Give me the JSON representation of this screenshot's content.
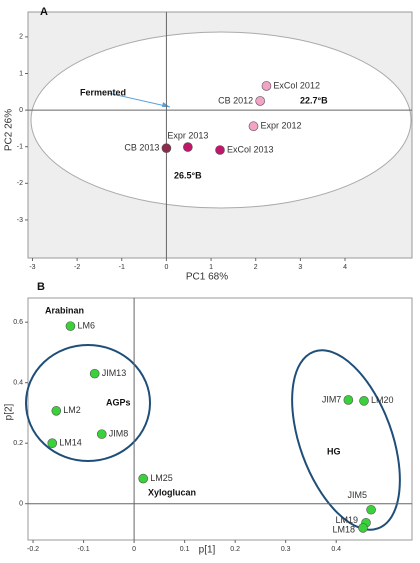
{
  "chart_data": [
    {
      "type": "scatter",
      "title": "A",
      "xlabel": "PC1 68%",
      "ylabel": "PC2 26%",
      "xlim": [
        -3.1,
        5.5
      ],
      "ylim": [
        -4.04,
        2.68
      ],
      "xticks": [
        -3,
        -2,
        -1,
        0,
        1,
        2,
        3,
        4
      ],
      "yticks": [
        -3,
        -2,
        -1,
        0,
        1,
        2
      ],
      "labels": [
        "ExCol 2012",
        "CB 2012",
        "Expr 2012",
        "CB 2013",
        "Expr 2013",
        "ExCol 2013"
      ],
      "x": [
        2.24,
        2.1,
        1.95,
        0.0,
        0.48,
        1.2
      ],
      "y": [
        0.66,
        0.25,
        -0.44,
        -1.04,
        -1.01,
        -1.09
      ],
      "colors": [
        "#f4a3c6",
        "#f4a3c6",
        "#f4a3c6",
        "#8e2a4e",
        "#c2166b",
        "#c2166b"
      ],
      "annotations": [
        "Fermented",
        "22.7°B",
        "26.5°B"
      ]
    },
    {
      "type": "scatter",
      "title": "B",
      "xlabel": "p[1]",
      "ylabel": "p[2]",
      "xlim": [
        -0.21,
        0.55
      ],
      "ylim": [
        -0.12,
        0.68
      ],
      "xticks": [
        -0.2,
        -0.1,
        0,
        0.1,
        0.2,
        0.3,
        0.4
      ],
      "yticks": [
        0,
        0.2,
        0.4,
        0.6
      ],
      "labels": [
        "LM6",
        "JIM13",
        "LM2",
        "LM14",
        "JIM8",
        "LM25",
        "JIM7",
        "LM20",
        "JIM5",
        "LM19",
        "LM18"
      ],
      "x": [
        -0.126,
        -0.078,
        -0.154,
        -0.162,
        -0.064,
        0.018,
        0.424,
        0.455,
        0.469,
        0.459,
        0.453
      ],
      "y": [
        0.587,
        0.43,
        0.307,
        0.2,
        0.23,
        0.083,
        0.343,
        0.34,
        -0.02,
        -0.063,
        -0.08
      ],
      "color": "#3ad13a",
      "annotations": [
        "Arabinan",
        "AGPs",
        "Xyloglucan",
        "HG"
      ]
    }
  ]
}
